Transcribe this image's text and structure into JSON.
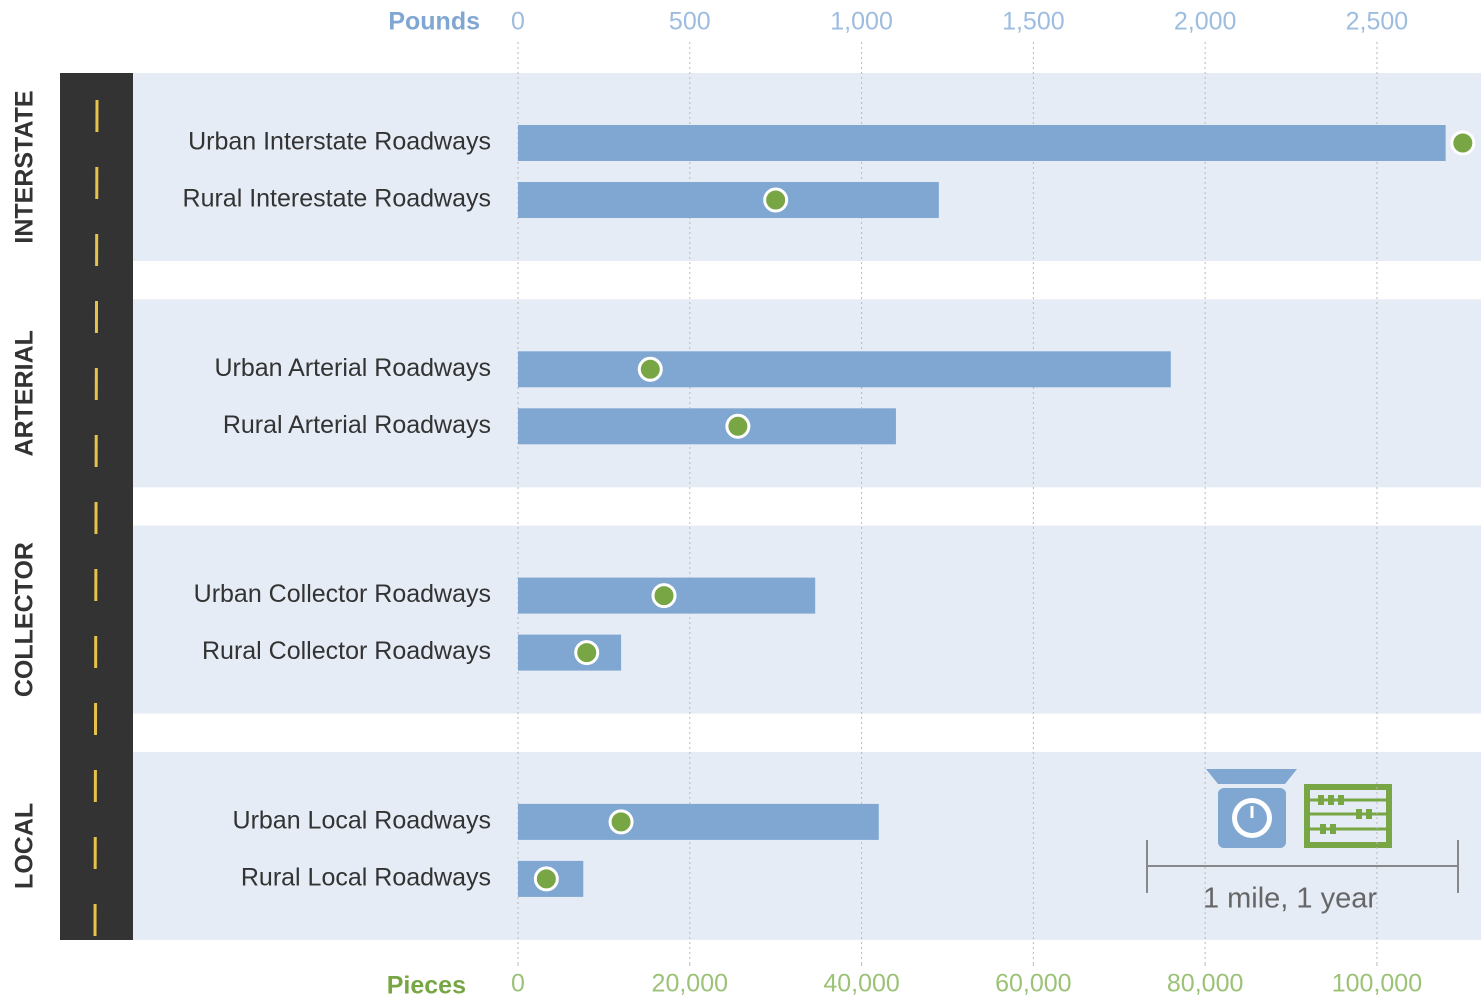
{
  "chart_data": {
    "type": "bar",
    "xlabel": "Pounds",
    "x2label": "Pieces",
    "groups": [
      "INTERSTATE",
      "ARTERIAL",
      "COLLECTOR",
      "LOCAL"
    ],
    "categories": [
      "Urban Interstate Roadways",
      "Rural Interestate Roadways",
      "Urban Arterial Roadways",
      "Rural Arterial Roadways",
      "Urban Collector Roadways",
      "Rural Collector Roadways",
      "Urban Local Roadways",
      "Rural Local Roadways"
    ],
    "series": [
      {
        "color": "#7fa7d2",
        "values": [
          2700,
          1225,
          1900,
          1100,
          865,
          300,
          1050,
          190
        ]
      },
      {
        "color": "#78a644",
        "axis": "x2",
        "values": [
          110000,
          30000,
          15400,
          25600,
          17000,
          8000,
          12000,
          3300
        ]
      }
    ],
    "xlim": [
      0,
      2800
    ],
    "xticks": [
      0,
      500,
      {
        "value": 1000,
        "label": "1,000"
      },
      {
        "value": 1500,
        "label": "1,500"
      },
      {
        "value": 2000,
        "label": "2,000"
      },
      {
        "value": 2500,
        "label": "2,500"
      }
    ],
    "x2lim": [
      0,
      112000
    ],
    "x2ticks": [
      0,
      {
        "value": 20000,
        "label": "20,000"
      },
      {
        "value": 40000,
        "label": "40,000"
      },
      {
        "value": 60000,
        "label": "60,000"
      },
      {
        "value": 80000,
        "label": "80,000"
      },
      {
        "value": 100000,
        "label": "100,000"
      }
    ],
    "grid": true,
    "annotation": "1 mile, 1 year"
  }
}
